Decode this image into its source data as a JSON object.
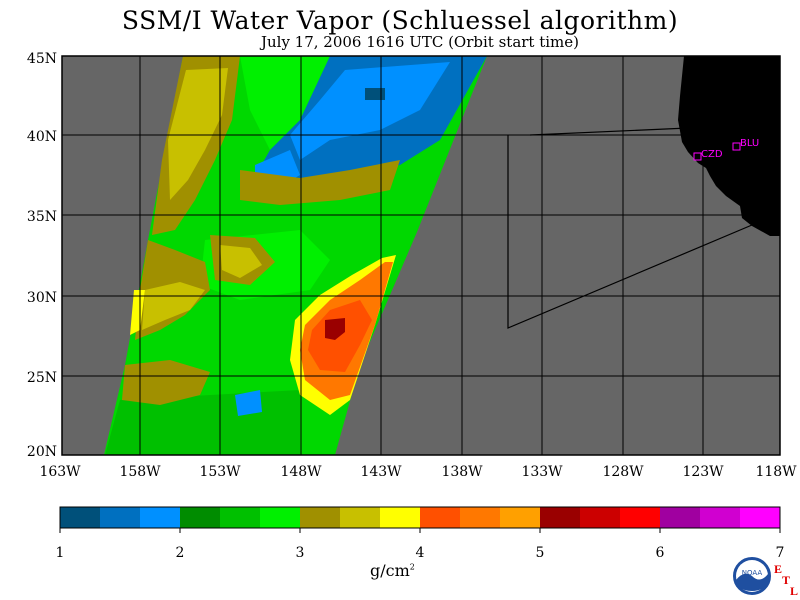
{
  "title": "SSM/I Water Vapor (Schluessel algorithm)",
  "subtitle": "July 17, 2006  1616 UTC  (Orbit start time)",
  "lat_labels": [
    "45N",
    "40N",
    "35N",
    "30N",
    "25N",
    "20N"
  ],
  "lon_labels": [
    "163W",
    "158W",
    "153W",
    "148W",
    "143W",
    "138W",
    "133W",
    "128W",
    "123W",
    "118W"
  ],
  "cities": [
    "CZD",
    "BLU"
  ],
  "colorbar": {
    "labels": [
      "1",
      "2",
      "3",
      "4",
      "5",
      "6",
      "7"
    ],
    "unit": "g/cm",
    "unit_exp": "2",
    "colors": [
      "#00507a",
      "#0070c0",
      "#0090ff",
      "#008c00",
      "#00c000",
      "#00f000",
      "#a09000",
      "#c8c000",
      "#ffff00",
      "#ff5000",
      "#ff7800",
      "#ffa000",
      "#9a0000",
      "#cc0000",
      "#ff0000",
      "#a000a0",
      "#d000d0",
      "#ff00ff"
    ]
  },
  "logo": {
    "text": "NOAA",
    "etl": [
      "E",
      "T",
      "L"
    ]
  }
}
